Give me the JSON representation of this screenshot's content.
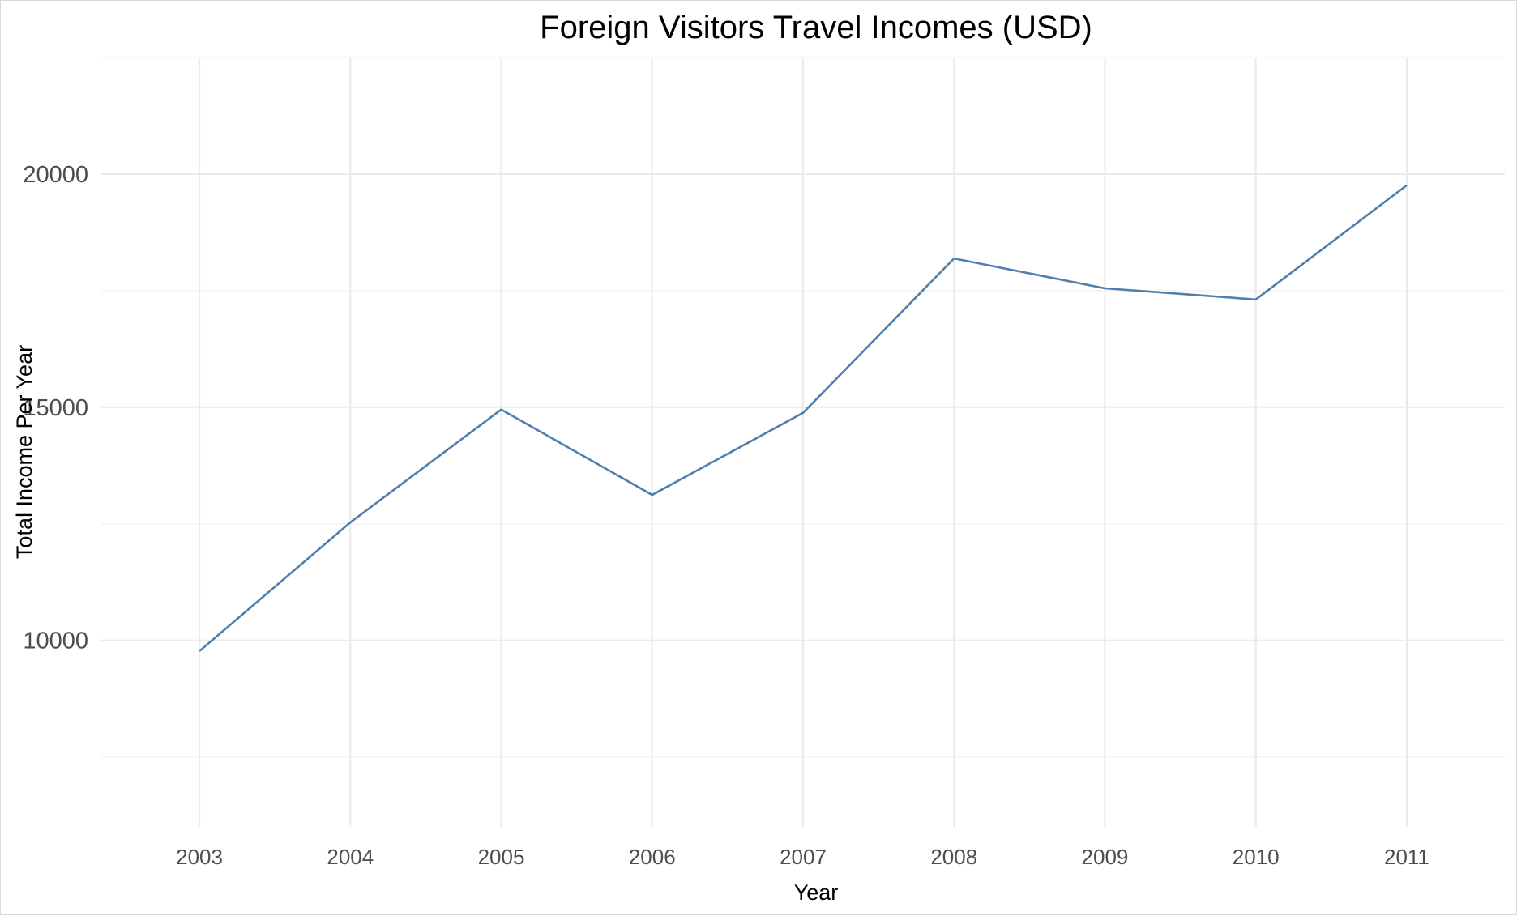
{
  "chart_data": {
    "type": "line",
    "title": "Foreign Visitors Travel Incomes (USD)",
    "xlabel": "Year",
    "ylabel": "Total Income Per Year",
    "x": [
      2003,
      2004,
      2005,
      2006,
      2007,
      2008,
      2009,
      2010,
      2011
    ],
    "series": [
      {
        "values": [
          9770,
          12530,
          14950,
          13120,
          14880,
          18190,
          17550,
          17310,
          19760
        ],
        "color": "#4f7eaf"
      }
    ],
    "xlim": [
      2002.35,
      2011.65
    ],
    "ylim": [
      6000,
      22500
    ],
    "y_ticks": [
      10000,
      15000,
      20000
    ],
    "y_tick_labels": [
      "10000",
      "15000",
      "20000"
    ],
    "y_minor_ticks": [
      7500,
      12500,
      17500,
      22500
    ],
    "x_tick_labels": [
      "2003",
      "2004",
      "2005",
      "2006",
      "2007",
      "2008",
      "2009",
      "2010",
      "2011"
    ],
    "grid": true,
    "legend": "none"
  }
}
